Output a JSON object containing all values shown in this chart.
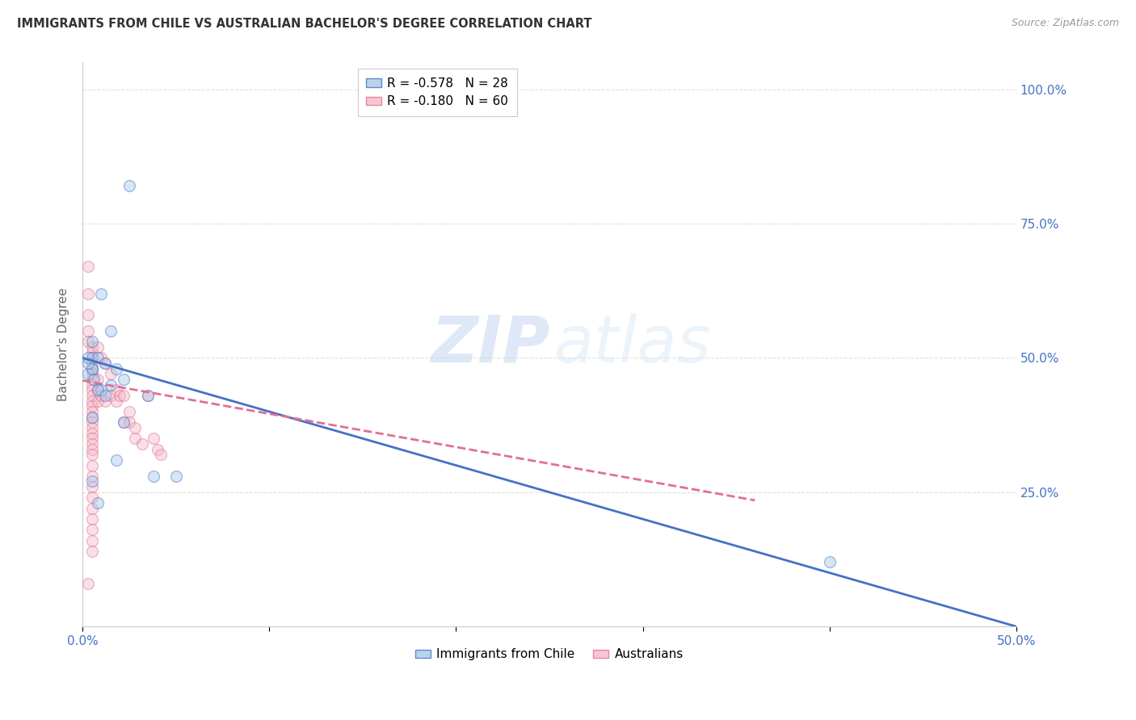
{
  "title": "IMMIGRANTS FROM CHILE VS AUSTRALIAN BACHELOR'S DEGREE CORRELATION CHART",
  "source": "Source: ZipAtlas.com",
  "ylabel": "Bachelor's Degree",
  "ytick_labels": [
    "100.0%",
    "75.0%",
    "50.0%",
    "25.0%"
  ],
  "ytick_positions": [
    1.0,
    0.75,
    0.5,
    0.25
  ],
  "legend_blue_r": "R = -0.578",
  "legend_blue_n": "N = 28",
  "legend_pink_r": "R = -0.180",
  "legend_pink_n": "N = 60",
  "blue_scatter_x": [
    0.025,
    0.01,
    0.015,
    0.005,
    0.005,
    0.008,
    0.012,
    0.018,
    0.005,
    0.003,
    0.006,
    0.022,
    0.015,
    0.01,
    0.008,
    0.012,
    0.035,
    0.005,
    0.022,
    0.018,
    0.05,
    0.038,
    0.005,
    0.008,
    0.005,
    0.003,
    0.003,
    0.4
  ],
  "blue_scatter_y": [
    0.82,
    0.62,
    0.55,
    0.53,
    0.5,
    0.5,
    0.49,
    0.48,
    0.48,
    0.47,
    0.46,
    0.46,
    0.45,
    0.44,
    0.44,
    0.43,
    0.43,
    0.39,
    0.38,
    0.31,
    0.28,
    0.28,
    0.27,
    0.23,
    0.48,
    0.49,
    0.5,
    0.12
  ],
  "pink_scatter_x": [
    0.003,
    0.003,
    0.003,
    0.003,
    0.003,
    0.005,
    0.005,
    0.005,
    0.005,
    0.005,
    0.005,
    0.005,
    0.005,
    0.005,
    0.005,
    0.005,
    0.005,
    0.005,
    0.005,
    0.005,
    0.005,
    0.005,
    0.005,
    0.005,
    0.008,
    0.008,
    0.008,
    0.008,
    0.01,
    0.01,
    0.012,
    0.012,
    0.015,
    0.015,
    0.018,
    0.018,
    0.02,
    0.022,
    0.022,
    0.025,
    0.025,
    0.028,
    0.028,
    0.032,
    0.035,
    0.038,
    0.04,
    0.042,
    0.005,
    0.005,
    0.005,
    0.005,
    0.005,
    0.005,
    0.005,
    0.005,
    0.005,
    0.005,
    0.005,
    0.003
  ],
  "pink_scatter_y": [
    0.67,
    0.62,
    0.58,
    0.55,
    0.53,
    0.52,
    0.51,
    0.5,
    0.49,
    0.48,
    0.47,
    0.46,
    0.45,
    0.44,
    0.43,
    0.42,
    0.41,
    0.4,
    0.39,
    0.38,
    0.37,
    0.36,
    0.35,
    0.34,
    0.52,
    0.46,
    0.44,
    0.42,
    0.5,
    0.43,
    0.49,
    0.42,
    0.47,
    0.43,
    0.44,
    0.42,
    0.43,
    0.43,
    0.38,
    0.4,
    0.38,
    0.37,
    0.35,
    0.34,
    0.43,
    0.35,
    0.33,
    0.32,
    0.33,
    0.32,
    0.3,
    0.28,
    0.26,
    0.24,
    0.22,
    0.2,
    0.18,
    0.16,
    0.14,
    0.08
  ],
  "blue_line_x": [
    0.0,
    0.5
  ],
  "blue_line_y": [
    0.5,
    0.0
  ],
  "pink_line_x": [
    0.0,
    0.36
  ],
  "pink_line_y": [
    0.458,
    0.235
  ],
  "blue_color": "#a8c8e8",
  "pink_color": "#f5b8c8",
  "blue_line_color": "#4472c4",
  "pink_line_color": "#e07090",
  "watermark_zip": "ZIP",
  "watermark_atlas": "atlas",
  "background_color": "#ffffff",
  "grid_color": "#e0e0e0",
  "axis_color": "#cccccc",
  "scatter_size": 100,
  "scatter_alpha": 0.45,
  "xlim": [
    0.0,
    0.5
  ],
  "ylim": [
    0.0,
    1.05
  ],
  "title_color": "#333333",
  "source_color": "#999999",
  "tick_color": "#4472c4",
  "ylabel_color": "#666666"
}
